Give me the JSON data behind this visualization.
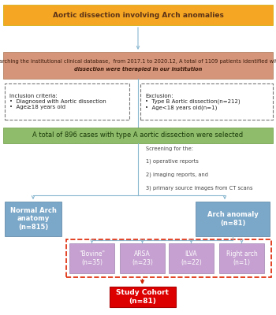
{
  "title_box": {
    "text": "Aortic dissection involving Arch anomalies",
    "color": "#F5A623",
    "text_color": "#5C3317",
    "fontsize": 6.5,
    "bold": true
  },
  "search_box": {
    "text_plain": "After searching the institutional clinical database,  from ",
    "text_bold1": "2017.1 to 2020.12",
    "text_mid": ", A total of 1109 patients identified with Aortic\n",
    "text_bold2": "dissection",
    "text_end": " were therapied in our institution",
    "color": "#D4957A",
    "text_color": "#3D1A0A",
    "fontsize": 5.0
  },
  "inclusion_box": {
    "text": "Inclusion criteria:\n•  Diagnosed with Aortic dissection\n•  Age≥18 years old",
    "text_color": "#222222",
    "fontsize": 5.0
  },
  "exclusion_box": {
    "text": "Exclusion:\n•  Type B Aortic dissection(n=212)\n•  Age<18 years old(n=1)",
    "text_color": "#222222",
    "fontsize": 5.0
  },
  "selected_box": {
    "text": "A total of 896 cases with type A aortic dissection were selected",
    "color": "#8FBC6A",
    "text_color": "#1A3A0A",
    "fontsize": 6.0,
    "bold": false
  },
  "screening_text": "Screening for the:\n\n1) operative reports\n\n2) imaging reports, and\n\n3) primary source images from CT scans",
  "normal_arch_box": {
    "text": "Normal Arch\nanatomy\n(n=815)",
    "color": "#7BA7C8",
    "text_color": "#FFFFFF",
    "fontsize": 6.0,
    "bold": true
  },
  "arch_anomaly_box": {
    "text": "Arch anomaly\n(n=81)",
    "color": "#7BA7C8",
    "text_color": "#FFFFFF",
    "fontsize": 6.0,
    "bold": true
  },
  "sub_boxes": [
    {
      "text": "\"Bovine\"\n(n=35)",
      "color": "#C5A0D0",
      "text_color": "#FFFFFF",
      "fontsize": 5.5
    },
    {
      "text": "ARSA\n(n=23)",
      "color": "#C5A0D0",
      "text_color": "#FFFFFF",
      "fontsize": 5.5
    },
    {
      "text": "ILVA\n(n=22)",
      "color": "#C5A0D0",
      "text_color": "#FFFFFF",
      "fontsize": 5.5
    },
    {
      "text": "Right arch\n(n=1)",
      "color": "#C5A0D0",
      "text_color": "#FFFFFF",
      "fontsize": 5.5
    }
  ],
  "study_cohort_box": {
    "text": "Study Cohort\n(n=81)",
    "color": "#DD0000",
    "text_color": "#FFFFFF",
    "fontsize": 6.5,
    "bold": true
  },
  "arrow_color": "#8AB8D0",
  "red_arrow_color": "#CC2200",
  "background_color": "#FFFFFF"
}
